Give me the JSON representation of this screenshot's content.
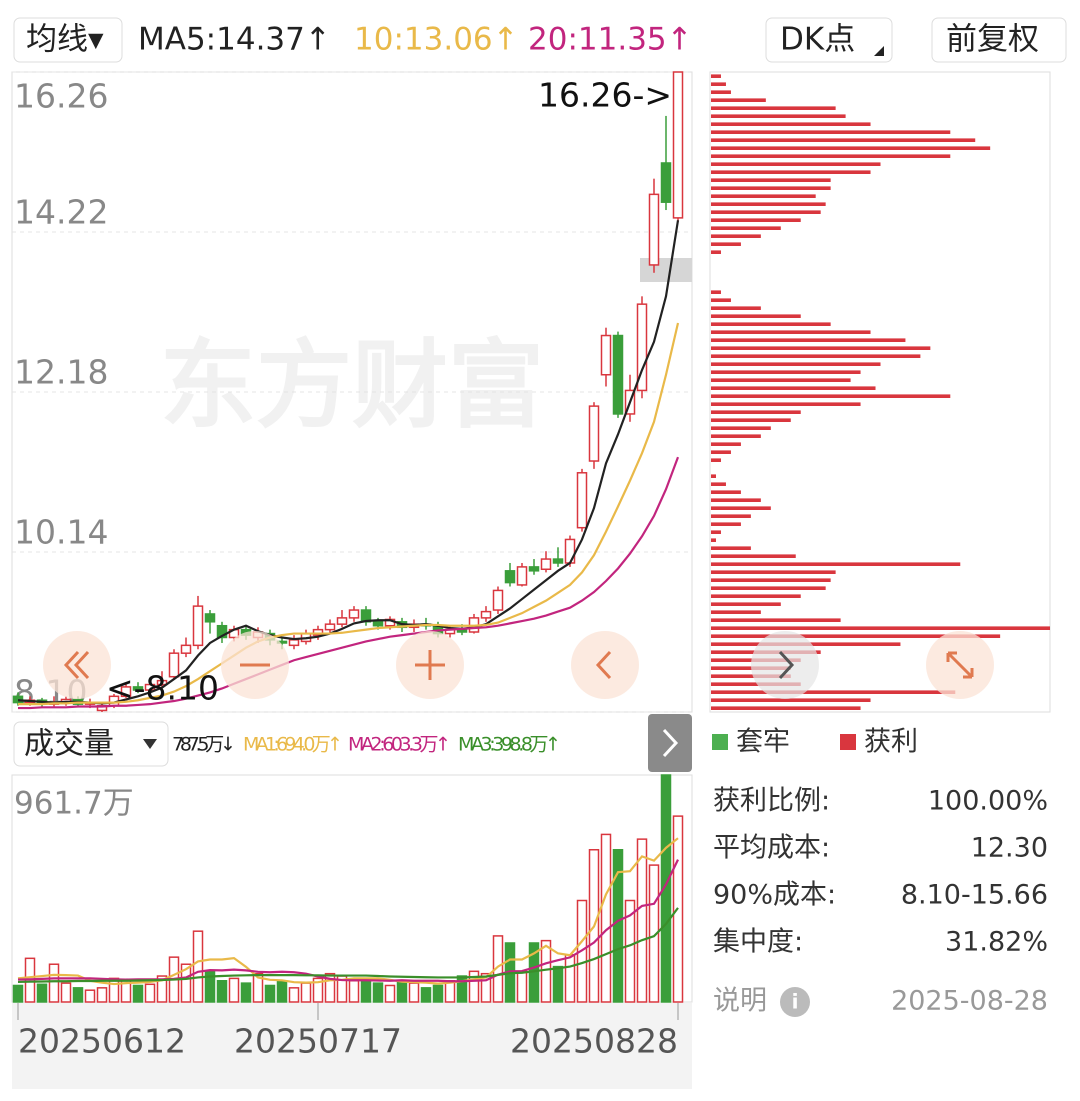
{
  "toolbar": {
    "ma_button": "均线▾",
    "dk": "DK点",
    "adjust": "前复权"
  },
  "watermark": "东方财富",
  "chart_data": [
    {
      "type": "candlestick",
      "categories": [
        "20250612",
        null,
        null,
        null,
        null,
        null,
        null,
        null,
        null,
        null,
        null,
        null,
        null,
        null,
        null,
        null,
        null,
        null,
        null,
        null,
        null,
        null,
        null,
        null,
        null,
        "20250717",
        null,
        null,
        null,
        null,
        null,
        null,
        null,
        null,
        null,
        null,
        null,
        null,
        null,
        null,
        null,
        null,
        null,
        null,
        null,
        null,
        null,
        null,
        null,
        null,
        null,
        null,
        null,
        null,
        null,
        "20250828"
      ],
      "open": [
        8.3,
        8.22,
        8.25,
        8.2,
        8.22,
        8.26,
        8.2,
        8.12,
        8.18,
        8.3,
        8.42,
        8.38,
        8.45,
        8.55,
        8.85,
        8.95,
        9.35,
        9.2,
        9.05,
        9.15,
        9.05,
        9.1,
        9.0,
        8.95,
        9.0,
        9.08,
        9.15,
        9.22,
        9.3,
        9.4,
        9.25,
        9.2,
        9.25,
        9.18,
        9.22,
        9.2,
        9.1,
        9.15,
        9.12,
        9.3,
        9.4,
        9.9,
        9.72,
        9.95,
        9.92,
        10.05,
        10.0,
        10.45,
        11.3,
        12.4,
        12.9,
        11.9,
        12.2,
        13.8,
        15.1,
        14.4
      ],
      "close": [
        8.22,
        8.25,
        8.2,
        8.22,
        8.26,
        8.2,
        8.22,
        8.18,
        8.3,
        8.42,
        8.38,
        8.45,
        8.5,
        8.85,
        8.95,
        9.45,
        9.25,
        9.05,
        9.15,
        9.08,
        9.12,
        9.02,
        8.98,
        9.02,
        9.1,
        9.15,
        9.22,
        9.3,
        9.4,
        9.25,
        9.2,
        9.28,
        9.18,
        9.22,
        9.2,
        9.1,
        9.15,
        9.12,
        9.3,
        9.38,
        9.65,
        9.75,
        9.95,
        9.9,
        10.05,
        10.0,
        10.3,
        11.15,
        12.0,
        12.9,
        11.9,
        12.2,
        13.3,
        14.7,
        14.6,
        16.26
      ],
      "high": [
        8.35,
        8.3,
        8.28,
        8.3,
        8.3,
        8.3,
        8.27,
        8.22,
        8.33,
        8.45,
        8.48,
        8.5,
        8.62,
        8.9,
        9.05,
        9.58,
        9.4,
        9.25,
        9.2,
        9.2,
        9.18,
        9.15,
        9.05,
        9.08,
        9.15,
        9.2,
        9.28,
        9.4,
        9.45,
        9.45,
        9.3,
        9.32,
        9.3,
        9.28,
        9.3,
        9.25,
        9.2,
        9.22,
        9.35,
        9.45,
        9.7,
        10.0,
        10.0,
        10.05,
        10.15,
        10.2,
        10.35,
        11.2,
        12.05,
        13.0,
        12.95,
        12.4,
        13.4,
        14.9,
        15.7,
        16.26
      ],
      "low": [
        8.18,
        8.18,
        8.15,
        8.16,
        8.18,
        8.17,
        8.15,
        8.1,
        8.15,
        8.28,
        8.34,
        8.35,
        8.4,
        8.52,
        8.8,
        8.9,
        9.1,
        8.98,
        9.0,
        9.02,
        8.98,
        8.95,
        8.9,
        8.9,
        8.96,
        9.02,
        9.1,
        9.18,
        9.25,
        9.2,
        9.15,
        9.15,
        9.12,
        9.12,
        9.15,
        9.05,
        9.05,
        9.08,
        9.1,
        9.25,
        9.35,
        9.7,
        9.7,
        9.85,
        9.88,
        9.95,
        9.95,
        10.4,
        11.2,
        12.25,
        11.85,
        11.8,
        12.1,
        13.7,
        14.5,
        14.35
      ],
      "up_color": "#d9363e",
      "down_color": "#3a9e3a",
      "ylim": [
        8.1,
        16.26
      ],
      "yticks": [
        {
          "value": 8.1,
          "label": "8.10"
        },
        10.14,
        12.18,
        14.22,
        16.26
      ],
      "lines": [
        {
          "name": "MA5:14.37↑",
          "color": "#222222",
          "values": [
            8.25,
            8.24,
            8.23,
            8.22,
            8.23,
            8.23,
            8.22,
            8.21,
            8.22,
            8.26,
            8.3,
            8.35,
            8.41,
            8.52,
            8.63,
            8.82,
            8.98,
            9.07,
            9.15,
            9.2,
            9.13,
            9.08,
            9.05,
            9.03,
            9.04,
            9.06,
            9.1,
            9.16,
            9.23,
            9.26,
            9.27,
            9.27,
            9.22,
            9.21,
            9.22,
            9.2,
            9.17,
            9.16,
            9.18,
            9.22,
            9.32,
            9.42,
            9.54,
            9.66,
            9.78,
            9.9,
            10.0,
            10.3,
            10.7,
            11.27,
            11.64,
            12.05,
            12.46,
            12.82,
            13.4,
            14.37
          ]
        },
        {
          "name": "10:13.06↑",
          "color": "#e9b949",
          "values": [
            8.2,
            8.2,
            8.2,
            8.21,
            8.21,
            8.22,
            8.22,
            8.22,
            8.22,
            8.23,
            8.25,
            8.28,
            8.31,
            8.36,
            8.43,
            8.52,
            8.62,
            8.72,
            8.82,
            8.92,
            9.0,
            9.05,
            9.08,
            9.1,
            9.1,
            9.1,
            9.1,
            9.11,
            9.13,
            9.15,
            9.17,
            9.18,
            9.19,
            9.2,
            9.21,
            9.21,
            9.2,
            9.2,
            9.2,
            9.21,
            9.24,
            9.3,
            9.36,
            9.44,
            9.52,
            9.62,
            9.72,
            9.88,
            10.1,
            10.4,
            10.72,
            11.05,
            11.4,
            11.8,
            12.4,
            13.06
          ]
        },
        {
          "name": "20:11.35↑",
          "color": "#c2257e",
          "values": [
            8.15,
            8.15,
            8.16,
            8.16,
            8.16,
            8.17,
            8.17,
            8.17,
            8.18,
            8.18,
            8.19,
            8.2,
            8.22,
            8.24,
            8.27,
            8.31,
            8.35,
            8.4,
            8.46,
            8.52,
            8.58,
            8.64,
            8.7,
            8.76,
            8.8,
            8.84,
            8.88,
            8.92,
            8.96,
            9.0,
            9.03,
            9.06,
            9.08,
            9.1,
            9.12,
            9.14,
            9.15,
            9.16,
            9.17,
            9.18,
            9.2,
            9.23,
            9.26,
            9.29,
            9.33,
            9.38,
            9.43,
            9.52,
            9.63,
            9.77,
            9.93,
            10.12,
            10.34,
            10.6,
            10.94,
            11.35
          ]
        }
      ],
      "annotations": [
        "16.26->",
        "<-8.10"
      ]
    },
    {
      "type": "bar",
      "title": "成交量",
      "current": "787.5万↓",
      "values": [
        70,
        185,
        75,
        160,
        80,
        60,
        50,
        60,
        100,
        90,
        70,
        75,
        110,
        190,
        160,
        300,
        130,
        90,
        100,
        80,
        120,
        70,
        90,
        60,
        80,
        100,
        120,
        110,
        90,
        100,
        80,
        70,
        90,
        80,
        60,
        70,
        90,
        110,
        130,
        120,
        280,
        250,
        130,
        250,
        260,
        150,
        200,
        430,
        645,
        710,
        645,
        430,
        690,
        580,
        961.7,
        787.5
      ],
      "ylim": [
        0,
        961.7
      ],
      "yticks": [
        {
          "value": 961.7,
          "label": "961.7万"
        }
      ],
      "lines": [
        {
          "name": "MA1:694.0万↑",
          "color": "#e9b949",
          "values": [
            100,
            105,
            110,
            115,
            114,
            112,
            90,
            82,
            76,
            80,
            82,
            85,
            92,
            115,
            139,
            172,
            180,
            180,
            186,
            149,
            104,
            94,
            92,
            84,
            82,
            84,
            92,
            94,
            100,
            100,
            100,
            94,
            86,
            84,
            82,
            78,
            82,
            88,
            96,
            104,
            150,
            180,
            180,
            206,
            238,
            206,
            198,
            258,
            320,
            456,
            550,
            554,
            617,
            599,
            653,
            694
          ]
        },
        {
          "name": "MA2:603.3万↑",
          "color": "#c2257e",
          "values": [
            95,
            96,
            98,
            100,
            100,
            100,
            100,
            98,
            96,
            95,
            96,
            96,
            96,
            98,
            104,
            128,
            135,
            134,
            137,
            134,
            128,
            126,
            128,
            126,
            120,
            108,
            98,
            93,
            92,
            92,
            91,
            90,
            92,
            90,
            90,
            90,
            88,
            88,
            90,
            92,
            116,
            130,
            131,
            146,
            164,
            177,
            189,
            219,
            252,
            304,
            344,
            367,
            407,
            416,
            498,
            603.3
          ]
        },
        {
          "name": "MA3:398.8万↑",
          "color": "#3a8f2a",
          "values": [
            85,
            86,
            87,
            88,
            88,
            89,
            89,
            90,
            90,
            90,
            91,
            92,
            93,
            95,
            98,
            104,
            108,
            110,
            112,
            113,
            114,
            114,
            114,
            114,
            113,
            113,
            112,
            112,
            112,
            112,
            110,
            108,
            107,
            106,
            105,
            104,
            104,
            104,
            106,
            108,
            115,
            122,
            124,
            130,
            137,
            143,
            150,
            165,
            182,
            203,
            224,
            240,
            262,
            279,
            331,
            398.8
          ]
        }
      ]
    },
    {
      "type": "barh",
      "color": "#d9363e",
      "values": [
        10,
        15,
        20,
        55,
        125,
        135,
        160,
        240,
        265,
        280,
        240,
        170,
        160,
        120,
        120,
        105,
        115,
        110,
        90,
        70,
        50,
        30,
        10,
        0,
        0,
        0,
        0,
        10,
        20,
        50,
        90,
        120,
        160,
        195,
        220,
        210,
        170,
        150,
        140,
        165,
        240,
        150,
        90,
        80,
        60,
        50,
        30,
        20,
        10,
        0,
        5,
        15,
        30,
        50,
        60,
        40,
        30,
        10,
        5,
        40,
        85,
        250,
        125,
        120,
        115,
        90,
        70,
        50,
        130,
        340,
        290,
        190,
        110,
        90,
        80,
        80,
        90,
        245,
        160,
        150
      ],
      "xlim": [
        0,
        340
      ],
      "series": [
        {
          "name": "套牢",
          "color": "#4caf50"
        },
        {
          "name": "获利",
          "color": "#d9363e"
        }
      ]
    }
  ],
  "stats": [
    [
      "获利比例:",
      "100.00%"
    ],
    [
      "平均成本:",
      "12.30"
    ],
    [
      "90%成本:",
      "8.10-15.66"
    ],
    [
      "集中度:",
      "31.82%"
    ]
  ],
  "footer": {
    "note": "说明",
    "date": "2025-08-28"
  }
}
